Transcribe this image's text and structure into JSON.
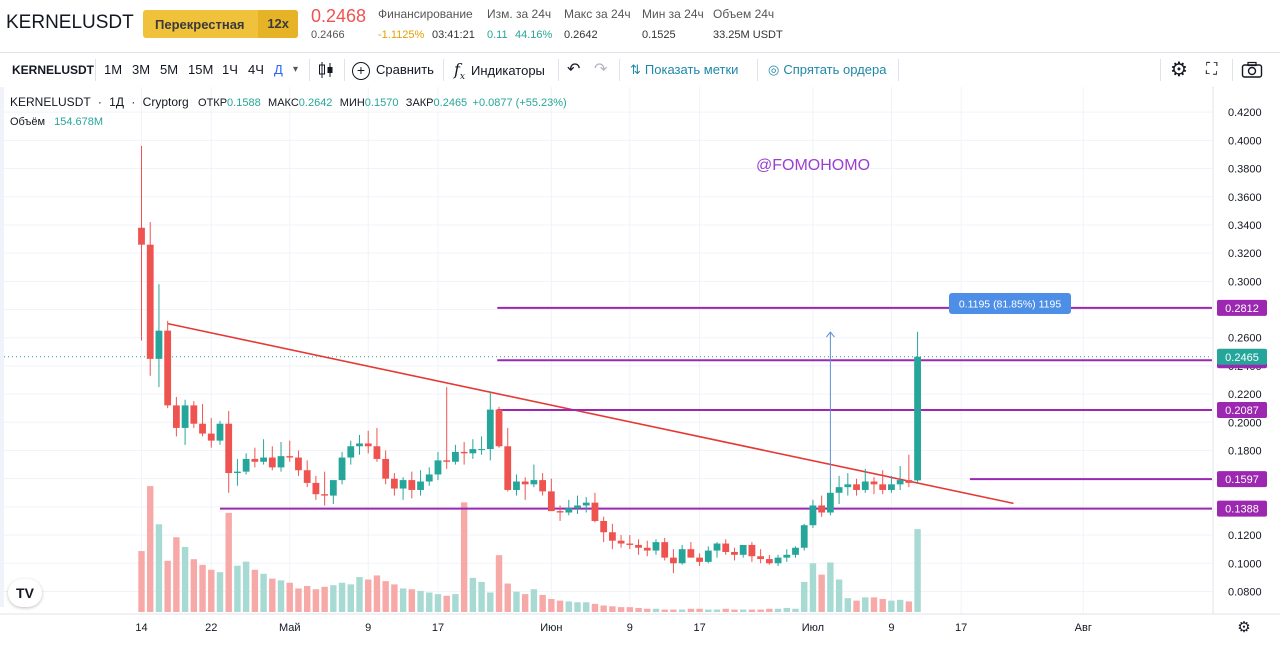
{
  "header": {
    "symbol": "KERNELUSDT",
    "margin_mode": "Перекрестная",
    "leverage": "12x",
    "last_price": "0.2468",
    "mark_price": "0.2466",
    "funding_label": "Финансирование",
    "funding_rate": "-1.1125%",
    "funding_timer": "03:41:21",
    "change_label": "Изм. за 24ч",
    "change_abs": "0.11",
    "change_pct": "44.16%",
    "high_label": "Макс за 24ч",
    "high_value": "0.2642",
    "low_label": "Мин за 24ч",
    "low_value": "0.1525",
    "volume_label": "Объем 24ч",
    "volume_value": "33.25M USDT"
  },
  "toolbar": {
    "symbol": "KERNELUSDT",
    "intervals": [
      "1M",
      "3M",
      "5M",
      "15M",
      "1Ч",
      "4Ч",
      "Д"
    ],
    "active_interval": "Д",
    "compare_label": "Сравнить",
    "indicators_label": "Индикаторы",
    "show_marks_label": "Показать метки",
    "hide_orders_label": "Спрятать ордера"
  },
  "legend": {
    "symbol": "KERNELUSDT",
    "interval": "1Д",
    "source": "Cryptorg",
    "open_label": "ОТКР",
    "open": "0.1588",
    "high_label": "МАКС",
    "high": "0.2642",
    "low_label": "МИН",
    "low": "0.1570",
    "close_label": "ЗАКР",
    "close": "0.2465",
    "change": "+0.0877 (+55.23%)",
    "volume_label": "Объём",
    "volume": "154.678M"
  },
  "watermark": "@FOMOHOMO",
  "logo": "TV",
  "colors": {
    "up": "#26a69a",
    "down": "#ef5350",
    "level": "#9c27b0",
    "trend": "#e53935",
    "accent": "#2962ff"
  },
  "chart_data": {
    "type": "candlestick",
    "price_axis_ticks": [
      "0.4200",
      "0.4000",
      "0.3800",
      "0.3600",
      "0.3400",
      "0.3200",
      "0.3000",
      "0.2800",
      "0.2600",
      "0.2400",
      "0.2200",
      "0.2000",
      "0.1800",
      "0.1600",
      "0.1400",
      "0.1200",
      "0.1000",
      "0.0800"
    ],
    "price_range": [
      0.0633,
      0.4258
    ],
    "time_axis_labels": [
      "14",
      "22",
      "Май",
      "9",
      "17",
      "Июн",
      "9",
      "17",
      "Июл",
      "9",
      "17",
      "Авг"
    ],
    "time_axis_positions": [
      0,
      8,
      17,
      26,
      34,
      47,
      56,
      64,
      77,
      86,
      94,
      108
    ],
    "current_price": "0.2465",
    "levels": [
      {
        "price": 0.2812,
        "label": "0.2812"
      },
      {
        "price": 0.244,
        "label": "0.2440"
      },
      {
        "price": 0.2087,
        "label": "0.2087"
      },
      {
        "price": 0.1597,
        "label": "0.1597"
      },
      {
        "price": 0.1388,
        "label": "0.1388"
      }
    ],
    "measure_label": "0.1195 (81.85%) 1195",
    "trendline": [
      [
        3,
        0.27
      ],
      [
        100,
        0.1425
      ]
    ],
    "candles": [
      [
        0,
        0.338,
        0.396,
        0.258,
        0.326
      ],
      [
        1,
        0.326,
        0.342,
        0.233,
        0.245
      ],
      [
        2,
        0.245,
        0.298,
        0.225,
        0.265
      ],
      [
        3,
        0.265,
        0.272,
        0.21,
        0.212
      ],
      [
        4,
        0.212,
        0.218,
        0.19,
        0.196
      ],
      [
        5,
        0.196,
        0.216,
        0.184,
        0.212
      ],
      [
        6,
        0.212,
        0.215,
        0.196,
        0.199
      ],
      [
        7,
        0.199,
        0.213,
        0.19,
        0.192
      ],
      [
        8,
        0.192,
        0.203,
        0.182,
        0.187
      ],
      [
        9,
        0.187,
        0.201,
        0.184,
        0.199
      ],
      [
        10,
        0.199,
        0.208,
        0.15,
        0.164
      ],
      [
        11,
        0.164,
        0.174,
        0.155,
        0.165
      ],
      [
        12,
        0.165,
        0.178,
        0.163,
        0.174
      ],
      [
        13,
        0.174,
        0.182,
        0.168,
        0.172
      ],
      [
        14,
        0.172,
        0.188,
        0.17,
        0.175
      ],
      [
        15,
        0.175,
        0.183,
        0.166,
        0.168
      ],
      [
        16,
        0.168,
        0.186,
        0.165,
        0.176
      ],
      [
        17,
        0.176,
        0.187,
        0.172,
        0.175
      ],
      [
        18,
        0.175,
        0.18,
        0.162,
        0.166
      ],
      [
        19,
        0.166,
        0.173,
        0.154,
        0.157
      ],
      [
        20,
        0.157,
        0.162,
        0.145,
        0.149
      ],
      [
        21,
        0.149,
        0.165,
        0.141,
        0.148
      ],
      [
        22,
        0.148,
        0.158,
        0.142,
        0.159
      ],
      [
        23,
        0.159,
        0.179,
        0.156,
        0.175
      ],
      [
        24,
        0.175,
        0.187,
        0.17,
        0.183
      ],
      [
        25,
        0.183,
        0.191,
        0.177,
        0.185
      ],
      [
        26,
        0.185,
        0.194,
        0.178,
        0.183
      ],
      [
        27,
        0.183,
        0.196,
        0.172,
        0.174
      ],
      [
        28,
        0.174,
        0.18,
        0.156,
        0.16
      ],
      [
        29,
        0.16,
        0.164,
        0.148,
        0.153
      ],
      [
        30,
        0.153,
        0.161,
        0.145,
        0.159
      ],
      [
        31,
        0.159,
        0.165,
        0.146,
        0.152
      ],
      [
        32,
        0.152,
        0.166,
        0.148,
        0.158
      ],
      [
        33,
        0.158,
        0.168,
        0.155,
        0.163
      ],
      [
        34,
        0.163,
        0.179,
        0.159,
        0.173
      ],
      [
        35,
        0.173,
        0.225,
        0.167,
        0.172
      ],
      [
        36,
        0.172,
        0.184,
        0.17,
        0.179
      ],
      [
        37,
        0.179,
        0.186,
        0.17,
        0.178
      ],
      [
        38,
        0.178,
        0.188,
        0.174,
        0.181
      ],
      [
        39,
        0.181,
        0.19,
        0.177,
        0.181
      ],
      [
        40,
        0.181,
        0.222,
        0.173,
        0.209
      ],
      [
        41,
        0.209,
        0.211,
        0.182,
        0.183
      ],
      [
        42,
        0.183,
        0.196,
        0.151,
        0.152
      ],
      [
        43,
        0.152,
        0.163,
        0.148,
        0.158
      ],
      [
        44,
        0.158,
        0.161,
        0.145,
        0.156
      ],
      [
        45,
        0.156,
        0.17,
        0.154,
        0.159
      ],
      [
        46,
        0.159,
        0.164,
        0.148,
        0.151
      ],
      [
        47,
        0.151,
        0.16,
        0.137,
        0.137
      ],
      [
        48,
        0.137,
        0.141,
        0.13,
        0.136
      ],
      [
        49,
        0.136,
        0.145,
        0.134,
        0.139
      ],
      [
        50,
        0.139,
        0.148,
        0.135,
        0.141
      ],
      [
        51,
        0.141,
        0.147,
        0.136,
        0.143
      ],
      [
        52,
        0.143,
        0.15,
        0.129,
        0.13
      ],
      [
        53,
        0.13,
        0.133,
        0.115,
        0.122
      ],
      [
        54,
        0.122,
        0.128,
        0.11,
        0.116
      ],
      [
        55,
        0.116,
        0.12,
        0.111,
        0.114
      ],
      [
        56,
        0.114,
        0.12,
        0.11,
        0.113
      ],
      [
        57,
        0.113,
        0.117,
        0.106,
        0.111
      ],
      [
        58,
        0.111,
        0.116,
        0.105,
        0.109
      ],
      [
        59,
        0.109,
        0.117,
        0.106,
        0.115
      ],
      [
        60,
        0.115,
        0.118,
        0.102,
        0.104
      ],
      [
        61,
        0.104,
        0.11,
        0.093,
        0.1
      ],
      [
        62,
        0.1,
        0.113,
        0.099,
        0.11
      ],
      [
        63,
        0.11,
        0.115,
        0.104,
        0.104
      ],
      [
        64,
        0.104,
        0.107,
        0.098,
        0.101
      ],
      [
        65,
        0.101,
        0.112,
        0.1,
        0.109
      ],
      [
        66,
        0.109,
        0.115,
        0.104,
        0.114
      ],
      [
        67,
        0.114,
        0.117,
        0.106,
        0.108
      ],
      [
        68,
        0.108,
        0.111,
        0.102,
        0.106
      ],
      [
        69,
        0.106,
        0.112,
        0.104,
        0.113
      ],
      [
        70,
        0.113,
        0.115,
        0.101,
        0.105
      ],
      [
        71,
        0.105,
        0.11,
        0.1,
        0.103
      ],
      [
        72,
        0.103,
        0.106,
        0.099,
        0.1
      ],
      [
        73,
        0.1,
        0.106,
        0.098,
        0.104
      ],
      [
        74,
        0.104,
        0.11,
        0.101,
        0.106
      ],
      [
        75,
        0.106,
        0.112,
        0.104,
        0.111
      ],
      [
        76,
        0.111,
        0.128,
        0.109,
        0.127
      ],
      [
        77,
        0.127,
        0.145,
        0.125,
        0.141
      ],
      [
        78,
        0.141,
        0.148,
        0.133,
        0.136
      ],
      [
        79,
        0.136,
        0.16,
        0.134,
        0.15
      ],
      [
        80,
        0.15,
        0.162,
        0.142,
        0.154
      ],
      [
        81,
        0.154,
        0.164,
        0.148,
        0.156
      ],
      [
        82,
        0.156,
        0.16,
        0.148,
        0.152
      ],
      [
        83,
        0.152,
        0.167,
        0.15,
        0.158
      ],
      [
        84,
        0.158,
        0.161,
        0.149,
        0.156
      ],
      [
        85,
        0.156,
        0.166,
        0.149,
        0.152
      ],
      [
        86,
        0.152,
        0.162,
        0.15,
        0.156
      ],
      [
        87,
        0.156,
        0.169,
        0.152,
        0.159
      ],
      [
        88,
        0.159,
        0.177,
        0.154,
        0.157
      ],
      [
        89,
        0.1588,
        0.2642,
        0.157,
        0.2465
      ]
    ],
    "volume_range_max": 160,
    "volumes": [
      75,
      155,
      108,
      63,
      92,
      80,
      65,
      58,
      52,
      49,
      122,
      57,
      62,
      52,
      47,
      41,
      39,
      36,
      29,
      32,
      28,
      31,
      33,
      36,
      34,
      43,
      40,
      45,
      38,
      34,
      29,
      28,
      26,
      24,
      22,
      20,
      22,
      135,
      42,
      37,
      24,
      70,
      35,
      25,
      22,
      28,
      21,
      16,
      14,
      13,
      12,
      12,
      10,
      8,
      7,
      6,
      6,
      5,
      4,
      4,
      3,
      3,
      3,
      4,
      4,
      3,
      3,
      4,
      3,
      3,
      3,
      3,
      4,
      4,
      5,
      4,
      37,
      60,
      46,
      61,
      40,
      17,
      14,
      18,
      18,
      16,
      14,
      15,
      13,
      102
    ]
  }
}
